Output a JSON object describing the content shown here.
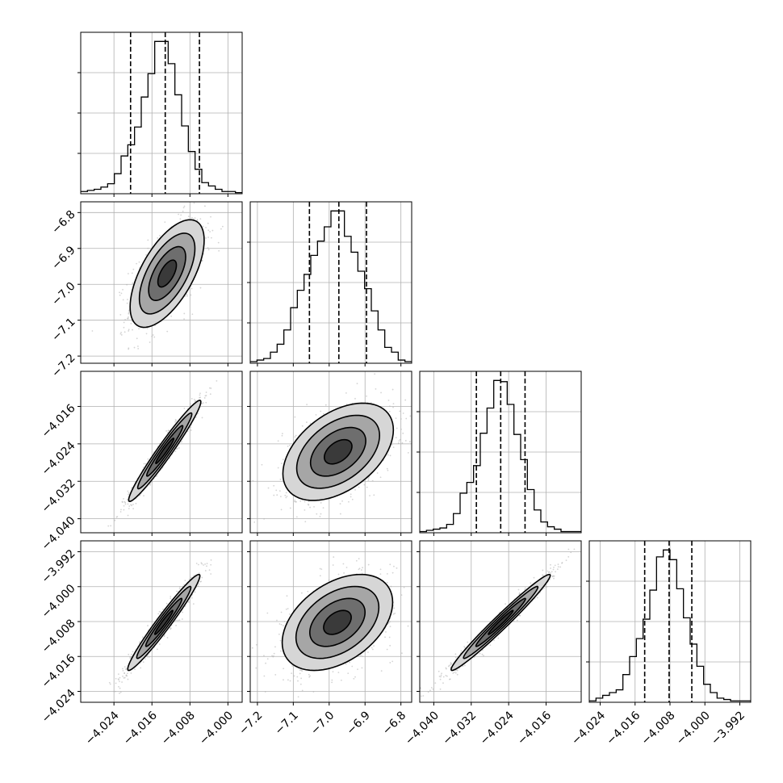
{
  "chart_data": {
    "type": "corner",
    "parameters": [
      {
        "range": [
          -4.031,
          -3.997
        ],
        "ticks": [
          -4.024,
          -4.016,
          -4.008,
          -4.0
        ],
        "tick_labels": [
          "−4.024",
          "−4.016",
          "−4.008",
          "−4.000"
        ],
        "quantiles": [
          -4.0205,
          -4.0132,
          -4.006
        ],
        "hist_peak": -4.0126
      },
      {
        "range": [
          -7.22,
          -6.77
        ],
        "ticks": [
          -7.2,
          -7.1,
          -7.0,
          -6.9,
          -6.8
        ],
        "tick_labels": [
          "−7.2",
          "−7.1",
          "−7.0",
          "−6.9",
          "−6.8"
        ],
        "quantiles": [
          -7.055,
          -6.973,
          -6.896
        ],
        "hist_peak": -6.968
      },
      {
        "range": [
          -4.043,
          -4.0085
        ],
        "ticks": [
          -4.04,
          -4.032,
          -4.024,
          -4.016
        ],
        "tick_labels": [
          "−4.040",
          "−4.032",
          "−4.024",
          "−4.016"
        ],
        "quantiles": [
          -4.0309,
          -4.0257,
          -4.0205
        ],
        "hist_peak": -4.0254
      },
      {
        "range": [
          -4.0265,
          -3.9895
        ],
        "ticks": [
          -4.024,
          -4.016,
          -4.008,
          -4.0,
          -3.992
        ],
        "tick_labels": [
          "−4.024",
          "−4.016",
          "−4.008",
          "−4.000",
          "−3.992"
        ],
        "quantiles": [
          -4.0138,
          -4.0082,
          -4.003
        ],
        "hist_peak": -4.008
      }
    ],
    "histograms": [
      [
        2,
        3,
        4,
        6,
        9,
        18,
        34,
        44,
        60,
        87,
        108,
        137,
        137,
        117,
        89,
        61,
        38,
        22,
        10,
        7,
        4,
        2,
        2,
        1
      ],
      [
        1,
        2,
        3,
        7,
        12,
        21,
        35,
        46,
        56,
        68,
        77,
        86,
        96,
        96,
        80,
        70,
        58,
        47,
        33,
        21,
        10,
        7,
        2,
        1
      ],
      [
        1,
        2,
        3,
        4,
        7,
        16,
        33,
        42,
        56,
        83,
        104,
        127,
        126,
        107,
        82,
        61,
        36,
        19,
        9,
        5,
        3,
        1,
        1,
        1
      ],
      [
        1,
        3,
        5,
        7,
        9,
        20,
        33,
        46,
        60,
        81,
        105,
        110,
        103,
        82,
        61,
        42,
        26,
        13,
        7,
        3,
        2,
        1,
        1,
        1
      ]
    ],
    "pairs": [
      {
        "row": 1,
        "col": 0,
        "center": [
          -4.0128,
          -6.97
        ],
        "sigma_x": 0.0039,
        "sigma_y": 0.075,
        "rho": 0.62
      },
      {
        "row": 2,
        "col": 0,
        "center": [
          -4.0133,
          -4.0255
        ],
        "sigma_x": 0.0038,
        "sigma_y": 0.0054,
        "rho": 0.97
      },
      {
        "row": 2,
        "col": 1,
        "center": [
          -6.975,
          -4.0257
        ],
        "sigma_x": 0.077,
        "sigma_y": 0.0052,
        "rho": 0.45
      },
      {
        "row": 3,
        "col": 0,
        "center": [
          -4.0135,
          -4.0082
        ],
        "sigma_x": 0.0038,
        "sigma_y": 0.0055,
        "rho": 0.97
      },
      {
        "row": 3,
        "col": 1,
        "center": [
          -6.977,
          -4.0082
        ],
        "sigma_x": 0.077,
        "sigma_y": 0.0055,
        "rho": 0.42
      },
      {
        "row": 3,
        "col": 2,
        "center": [
          -4.0257,
          -4.0082
        ],
        "sigma_x": 0.0053,
        "sigma_y": 0.0055,
        "rho": 0.98
      }
    ],
    "contour_levels_sigma": [
      0.5,
      1.0,
      1.5,
      2.0
    ],
    "grid": true,
    "quantile_line_style": "dashed",
    "colors": {
      "hist": "#000000",
      "contour": "#000000",
      "points": "#b0b0b0",
      "grid": "#b0b0b0",
      "quantile": "#000000"
    }
  }
}
